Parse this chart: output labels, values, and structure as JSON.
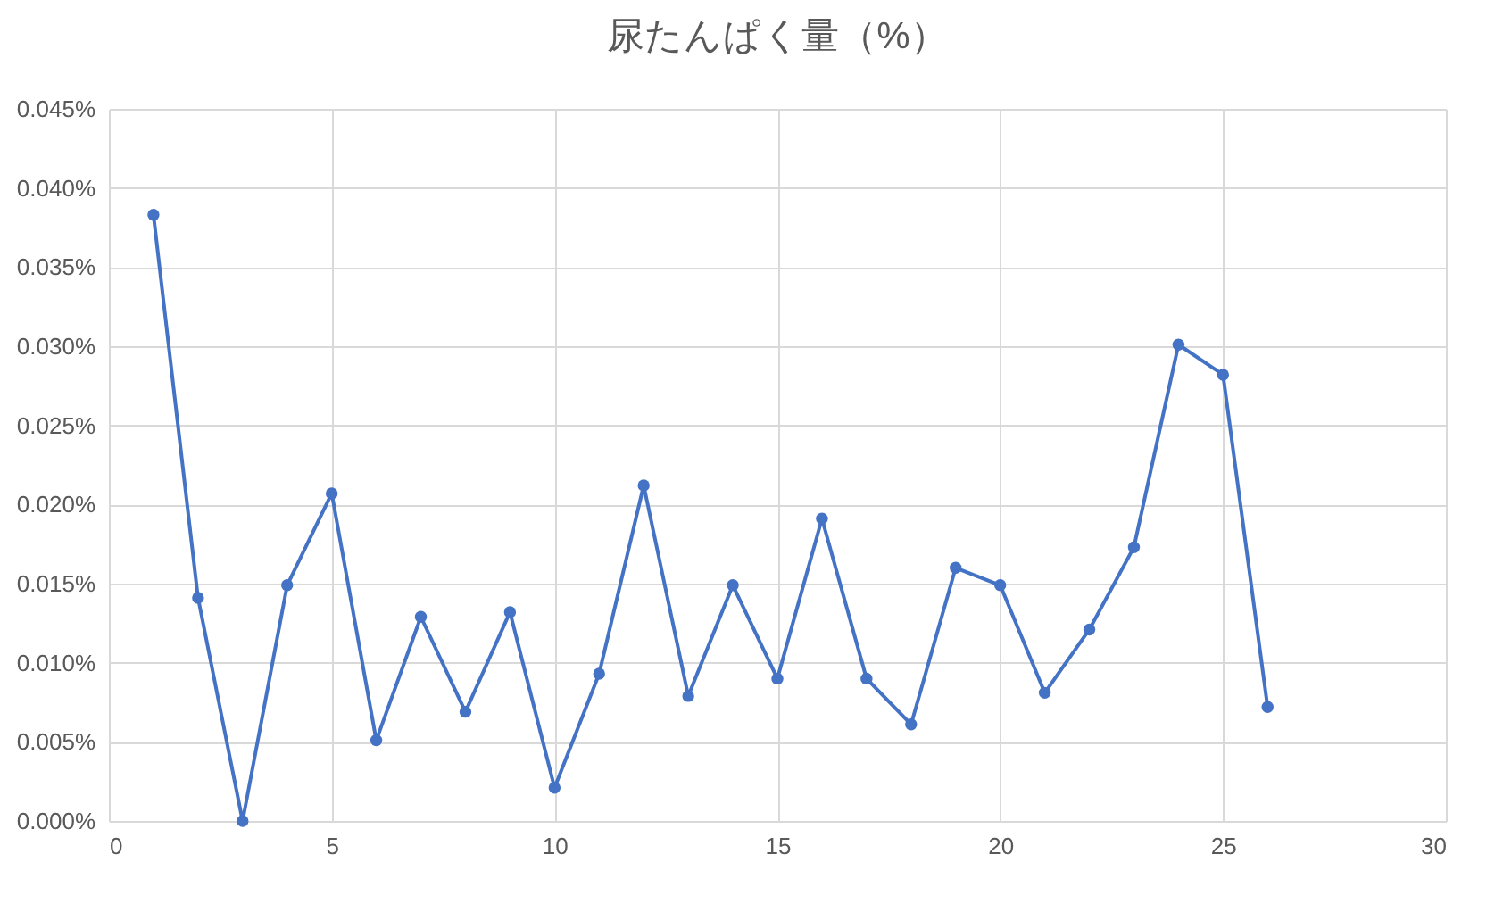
{
  "chart_data": {
    "type": "line",
    "title": "尿たんぱく量（%）",
    "x": [
      1,
      2,
      3,
      4,
      5,
      6,
      7,
      8,
      9,
      10,
      11,
      12,
      13,
      14,
      15,
      16,
      17,
      18,
      19,
      20,
      21,
      22,
      23,
      24,
      25,
      26
    ],
    "series": [
      {
        "color": "#4472c4",
        "values": [
          0.0383,
          0.0141,
          0,
          0.0149,
          0.0207,
          0.0051,
          0.0129,
          0.0069,
          0.0132,
          0.0021,
          0.0093,
          0.0212,
          0.0079,
          0.0149,
          0.009,
          0.0191,
          0.009,
          0.0061,
          0.016,
          0.0149,
          0.0081,
          0.0121,
          0.0173,
          0.0301,
          0.0282,
          0.0072
        ]
      }
    ],
    "xlim": [
      0,
      30
    ],
    "xticks": [
      0,
      5,
      10,
      15,
      20,
      25,
      30
    ],
    "ylim": [
      0,
      0.045
    ],
    "yticks": [
      {
        "value": 0,
        "label": "0.000%"
      },
      {
        "value": 0.005,
        "label": "0.005%"
      },
      {
        "value": 0.01,
        "label": "0.010%"
      },
      {
        "value": 0.015,
        "label": "0.015%"
      },
      {
        "value": 0.02,
        "label": "0.020%"
      },
      {
        "value": 0.025,
        "label": "0.025%"
      },
      {
        "value": 0.03,
        "label": "0.030%"
      },
      {
        "value": 0.035,
        "label": "0.035%"
      },
      {
        "value": 0.04,
        "label": "0.040%"
      },
      {
        "value": 0.045,
        "label": "0.045%"
      }
    ],
    "grid": true,
    "marker": "circle",
    "line_style": "solid"
  }
}
